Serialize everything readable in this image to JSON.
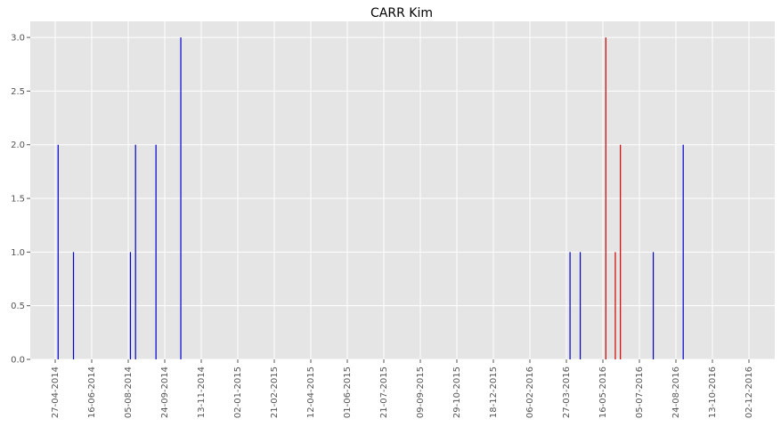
{
  "chart_data": {
    "type": "bar",
    "title": "CARR Kim",
    "xlabel": "",
    "ylabel": "",
    "ylim": [
      0,
      3.15
    ],
    "y_ticks": [
      "0.0",
      "0.5",
      "1.0",
      "1.5",
      "2.0",
      "2.5",
      "3.0"
    ],
    "x_ticks": [
      "27-04-2014",
      "16-06-2014",
      "05-08-2014",
      "24-09-2014",
      "13-11-2014",
      "02-01-2015",
      "21-02-2015",
      "12-04-2015",
      "01-06-2015",
      "21-07-2015",
      "09-09-2015",
      "29-10-2015",
      "18-12-2015",
      "06-02-2016",
      "27-03-2016",
      "16-05-2016",
      "05-07-2016",
      "24-08-2016",
      "13-10-2016",
      "02-12-2016"
    ],
    "grid": true,
    "series": [
      {
        "color": "#0000cc",
        "points": [
          {
            "x": "2014-05-01",
            "y": 2
          },
          {
            "x": "2014-05-22",
            "y": 1
          },
          {
            "x": "2014-08-08",
            "y": 1
          },
          {
            "x": "2014-08-15",
            "y": 2
          },
          {
            "x": "2014-09-12",
            "y": 2
          },
          {
            "x": "2014-10-16",
            "y": 3
          },
          {
            "x": "2016-04-01",
            "y": 1
          },
          {
            "x": "2016-04-15",
            "y": 1
          },
          {
            "x": "2016-07-24",
            "y": 1
          },
          {
            "x": "2016-09-03",
            "y": 2
          }
        ]
      },
      {
        "color": "#cc0000",
        "points": [
          {
            "x": "2016-05-20",
            "y": 3
          },
          {
            "x": "2016-06-02",
            "y": 1
          },
          {
            "x": "2016-06-09",
            "y": 2
          }
        ]
      }
    ]
  }
}
